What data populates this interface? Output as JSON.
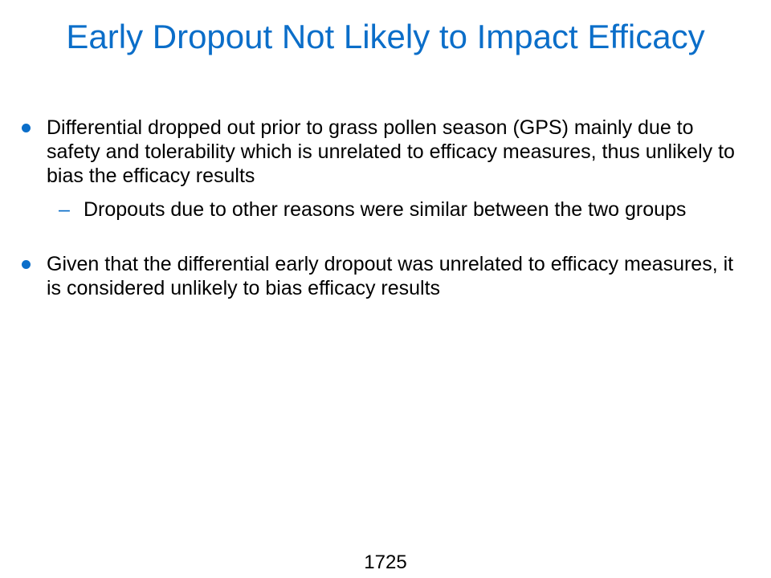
{
  "slide": {
    "title": "Early Dropout Not Likely to Impact Efficacy",
    "bullets": [
      {
        "text": "Differential dropped out prior to grass pollen season (GPS) mainly due to safety and tolerability which is unrelated to efficacy measures, thus unlikely to bias the efficacy results",
        "sub": [
          {
            "dash": "–",
            "text": "Dropouts due to other reasons were similar between the two groups"
          }
        ]
      },
      {
        "text": "Given that the differential early dropout was unrelated to efficacy measures, it is considered unlikely to bias efficacy results"
      }
    ],
    "page_number": "1725"
  },
  "colors": {
    "accent": "#0b6ec9",
    "text": "#000000",
    "background": "#ffffff"
  }
}
